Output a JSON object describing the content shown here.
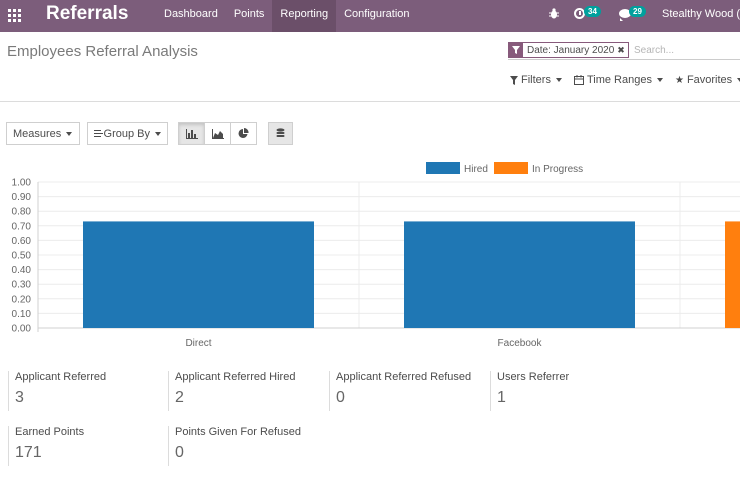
{
  "navbar": {
    "brand": "Referrals",
    "menu": [
      "Dashboard",
      "Points",
      "Reporting",
      "Configuration"
    ],
    "active_menu": "Reporting",
    "activities_count": "34",
    "messages_count": "29",
    "user": "Stealthy Wood (U"
  },
  "page": {
    "title": "Employees Referral Analysis"
  },
  "search": {
    "facet_label": "Date: January 2020",
    "placeholder": "Search..."
  },
  "filters": {
    "filters_label": "Filters",
    "time_ranges_label": "Time Ranges",
    "favorites_label": "Favorites"
  },
  "toolbar": {
    "measures_label": "Measures",
    "group_by_label": "Group By"
  },
  "chart_data": {
    "type": "bar",
    "categories": [
      "Direct",
      "Facebook",
      ""
    ],
    "series": [
      {
        "name": "Hired",
        "values": [
          0.73,
          0.73,
          null
        ]
      },
      {
        "name": "In Progress",
        "values": [
          null,
          null,
          0.73
        ]
      }
    ],
    "yticks": [
      "1.00",
      "0.90",
      "0.80",
      "0.70",
      "0.60",
      "0.50",
      "0.40",
      "0.30",
      "0.20",
      "0.10",
      "0.00"
    ],
    "ylim": [
      0,
      1
    ],
    "grid": true,
    "legend": "top",
    "colors": {
      "Hired": "#1f77b4",
      "In Progress": "#ff7f0e"
    }
  },
  "kpis": [
    {
      "label": "Applicant Referred",
      "value": "3"
    },
    {
      "label": "Applicant Referred Hired",
      "value": "2"
    },
    {
      "label": "Applicant Referred Refused",
      "value": "0"
    },
    {
      "label": "Users Referrer",
      "value": "1"
    },
    {
      "label": "Earned Points",
      "value": "171"
    },
    {
      "label": "Points Given For Refused",
      "value": "0"
    }
  ]
}
